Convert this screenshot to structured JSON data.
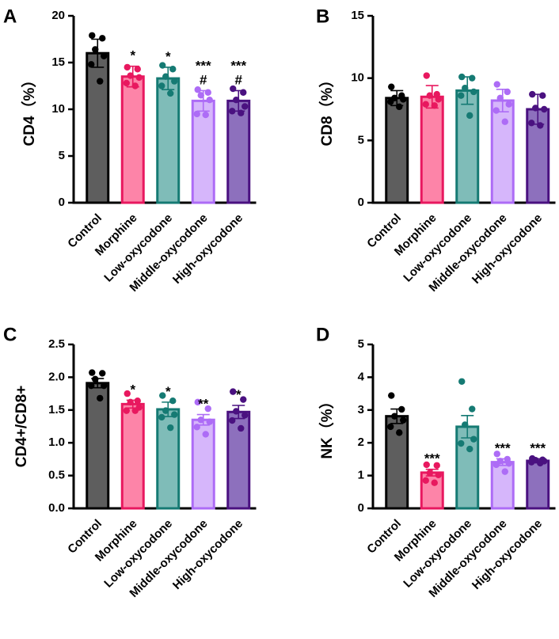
{
  "colors": {
    "control": {
      "stroke": "#000000",
      "fill": "#5e5e5e",
      "dot": "#000000"
    },
    "morphine": {
      "stroke": "#e8185f",
      "fill": "#fd84a8",
      "dot": "#e8185f"
    },
    "low": {
      "stroke": "#157a73",
      "fill": "#7fbcb8",
      "dot": "#157a73"
    },
    "middle": {
      "stroke": "#ad6cf6",
      "fill": "#d6b6fb",
      "dot": "#ad6cf6"
    },
    "high": {
      "stroke": "#4a1180",
      "fill": "#8d70bd",
      "dot": "#4a1180"
    }
  },
  "chart_data": [
    {
      "panel": "A",
      "type": "bar",
      "ylabel": "CD4（%）",
      "ylim": [
        0,
        20
      ],
      "yticks": [
        "0",
        "5",
        "10",
        "15",
        "20"
      ],
      "categories": [
        "Control",
        "Morphine",
        "Low-oxycodone",
        "Middle-oxycodone",
        "High-oxycodone"
      ],
      "values": [
        16.0,
        13.5,
        13.3,
        10.9,
        10.9
      ],
      "errors": [
        1.5,
        1.1,
        1.2,
        1.1,
        1.1
      ],
      "points": [
        [
          17.9,
          17.6,
          16.4,
          15.7,
          14.8,
          13.0
        ],
        [
          14.5,
          14.3,
          13.6,
          13.4,
          12.8,
          12.5
        ],
        [
          14.7,
          14.3,
          13.5,
          13.0,
          12.5,
          11.7
        ],
        [
          12.1,
          11.8,
          11.5,
          11.0,
          9.5,
          9.4
        ],
        [
          12.2,
          11.8,
          11.0,
          10.3,
          9.8,
          9.6
        ]
      ],
      "significance": [
        "",
        "*",
        "*",
        "***\n#",
        "***\n#"
      ]
    },
    {
      "panel": "B",
      "type": "bar",
      "ylabel": "CD8（%）",
      "ylim": [
        0,
        15
      ],
      "yticks": [
        "0",
        "5",
        "10",
        "15"
      ],
      "categories": [
        "Control",
        "Morphine",
        "Low-oxycodone",
        "Middle-oxycodone",
        "High-oxycodone"
      ],
      "values": [
        8.4,
        8.5,
        9.0,
        8.2,
        7.5
      ],
      "errors": [
        0.6,
        0.9,
        1.1,
        0.9,
        1.2
      ],
      "points": [
        [
          9.3,
          8.6,
          8.4,
          8.3,
          8.1,
          7.7
        ],
        [
          10.2,
          8.7,
          8.6,
          8.3,
          7.9,
          7.8
        ],
        [
          10.1,
          10.0,
          9.2,
          8.9,
          8.6,
          7.0
        ],
        [
          9.5,
          8.9,
          8.4,
          7.9,
          7.4,
          6.5
        ],
        [
          8.7,
          8.6,
          7.6,
          7.5,
          6.4,
          6.2
        ]
      ],
      "significance": [
        "",
        "",
        "",
        "",
        ""
      ]
    },
    {
      "panel": "C",
      "type": "bar",
      "ylabel": "CD4+/CD8+",
      "ylim": [
        0,
        2.5
      ],
      "yticks": [
        "0.0",
        "0.5",
        "1.0",
        "1.5",
        "2.0",
        "2.5"
      ],
      "categories": [
        "Control",
        "Morphine",
        "Low-oxycodone",
        "Middle-oxycodone",
        "High-oxycodone"
      ],
      "values": [
        1.91,
        1.59,
        1.51,
        1.35,
        1.47
      ],
      "errors": [
        0.07,
        0.06,
        0.11,
        0.08,
        0.1
      ],
      "points": [
        [
          2.07,
          2.06,
          1.97,
          1.87,
          1.87,
          1.68
        ],
        [
          1.75,
          1.64,
          1.62,
          1.54,
          1.49,
          1.49
        ],
        [
          1.72,
          1.64,
          1.49,
          1.43,
          1.39,
          1.23
        ],
        [
          1.62,
          1.52,
          1.35,
          1.32,
          1.24,
          1.13
        ],
        [
          1.78,
          1.66,
          1.48,
          1.42,
          1.34,
          1.22
        ]
      ],
      "significance": [
        "",
        "*",
        "*",
        "**",
        "*"
      ]
    },
    {
      "panel": "D",
      "type": "bar",
      "ylabel": "NK（%）",
      "ylim": [
        0,
        5
      ],
      "yticks": [
        "0",
        "1",
        "2",
        "3",
        "4",
        "5"
      ],
      "categories": [
        "Control",
        "Morphine",
        "Low-oxycodone",
        "Middle-oxycodone",
        "High-oxycodone"
      ],
      "values": [
        2.81,
        1.09,
        2.49,
        1.41,
        1.45
      ],
      "errors": [
        0.22,
        0.1,
        0.34,
        0.1,
        0.06
      ],
      "points": [
        [
          3.44,
          3.02,
          2.81,
          2.69,
          2.49,
          2.31
        ],
        [
          1.33,
          1.31,
          1.08,
          1.02,
          0.85,
          0.78
        ],
        [
          3.87,
          3.03,
          2.55,
          2.11,
          1.98,
          1.81
        ],
        [
          1.66,
          1.5,
          1.44,
          1.37,
          1.33,
          1.12
        ],
        [
          1.52,
          1.48,
          1.47,
          1.44,
          1.41,
          1.38
        ]
      ],
      "significance": [
        "",
        "***",
        "",
        "***",
        "***"
      ]
    }
  ]
}
